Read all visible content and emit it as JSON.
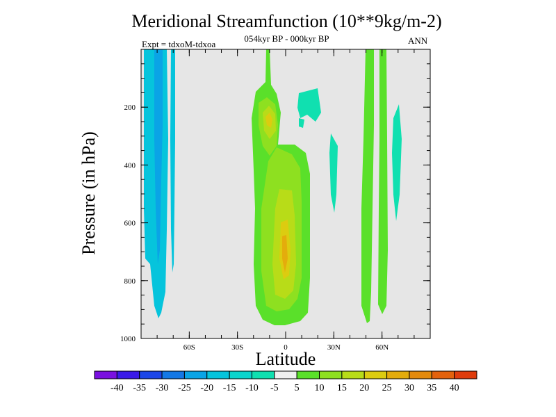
{
  "chart_data": {
    "type": "heatmap",
    "title": "Meridional Streamfunction (10**9kg/m-2)",
    "subtitle": "054kyr BP - 000kyr BP",
    "experiment_label": "Expt = tdxoM-tdxoa",
    "season": "ANN",
    "xlabel": "Latitude",
    "ylabel": "Pressure (in hPa)",
    "xlim": [
      -90,
      90
    ],
    "ylim": [
      1000,
      0
    ],
    "x_ticks": [
      -60,
      -30,
      0,
      30,
      60
    ],
    "x_tick_labels": [
      "60S",
      "30S",
      "0",
      "30N",
      "60N"
    ],
    "y_ticks": [
      200,
      400,
      600,
      800,
      1000
    ],
    "y_tick_labels": [
      "200",
      "400",
      "600",
      "800",
      "1000"
    ],
    "background_color": "#e6e6e6",
    "colorbar": {
      "labels": [
        "-40",
        "-35",
        "-30",
        "-25",
        "-20",
        "-15",
        "-10",
        "-5",
        "5",
        "10",
        "15",
        "20",
        "25",
        "30",
        "35",
        "40"
      ],
      "colors": [
        "#7a10e0",
        "#3a1ae8",
        "#1c46e8",
        "#1478e6",
        "#0aa4e6",
        "#06c4dc",
        "#0ad4cc",
        "#10e0b0",
        "#f0f0f0",
        "#5ae02a",
        "#8ee020",
        "#b8dc18",
        "#dccc10",
        "#e4ac0c",
        "#e48a0c",
        "#e4620c",
        "#e03c0c"
      ]
    },
    "features": [
      {
        "name": "south-polar-negative",
        "level": "-10",
        "lat": [
          -88,
          -82
        ],
        "p": [
          0,
          940
        ],
        "colors": [
          "#06c4dc",
          "#0aa4e6"
        ],
        "core_level": "-15"
      },
      {
        "name": "south-polar-thin",
        "level": "-10",
        "lat": [
          -70,
          -69
        ],
        "p": [
          0,
          770
        ]
      },
      {
        "name": "equatorial-positive",
        "level": "10",
        "lat": [
          -15,
          11
        ],
        "p": [
          0,
          960
        ],
        "core_level": "25"
      },
      {
        "name": "upper-nh-negative",
        "level": "-5",
        "lat": [
          8,
          20
        ],
        "p": [
          120,
          270
        ]
      },
      {
        "name": "nh-negative-30",
        "level": "-5",
        "lat": [
          27,
          32
        ],
        "p": [
          290,
          570
        ]
      },
      {
        "name": "nh-positive-50",
        "level": "10",
        "lat": [
          48,
          54
        ],
        "p": [
          0,
          950
        ]
      },
      {
        "name": "nh-positive-60",
        "level": "10",
        "lat": [
          58,
          62
        ],
        "p": [
          0,
          930
        ]
      },
      {
        "name": "nh-negative-70",
        "level": "-5",
        "lat": [
          68,
          72
        ],
        "p": [
          220,
          600
        ]
      }
    ]
  }
}
